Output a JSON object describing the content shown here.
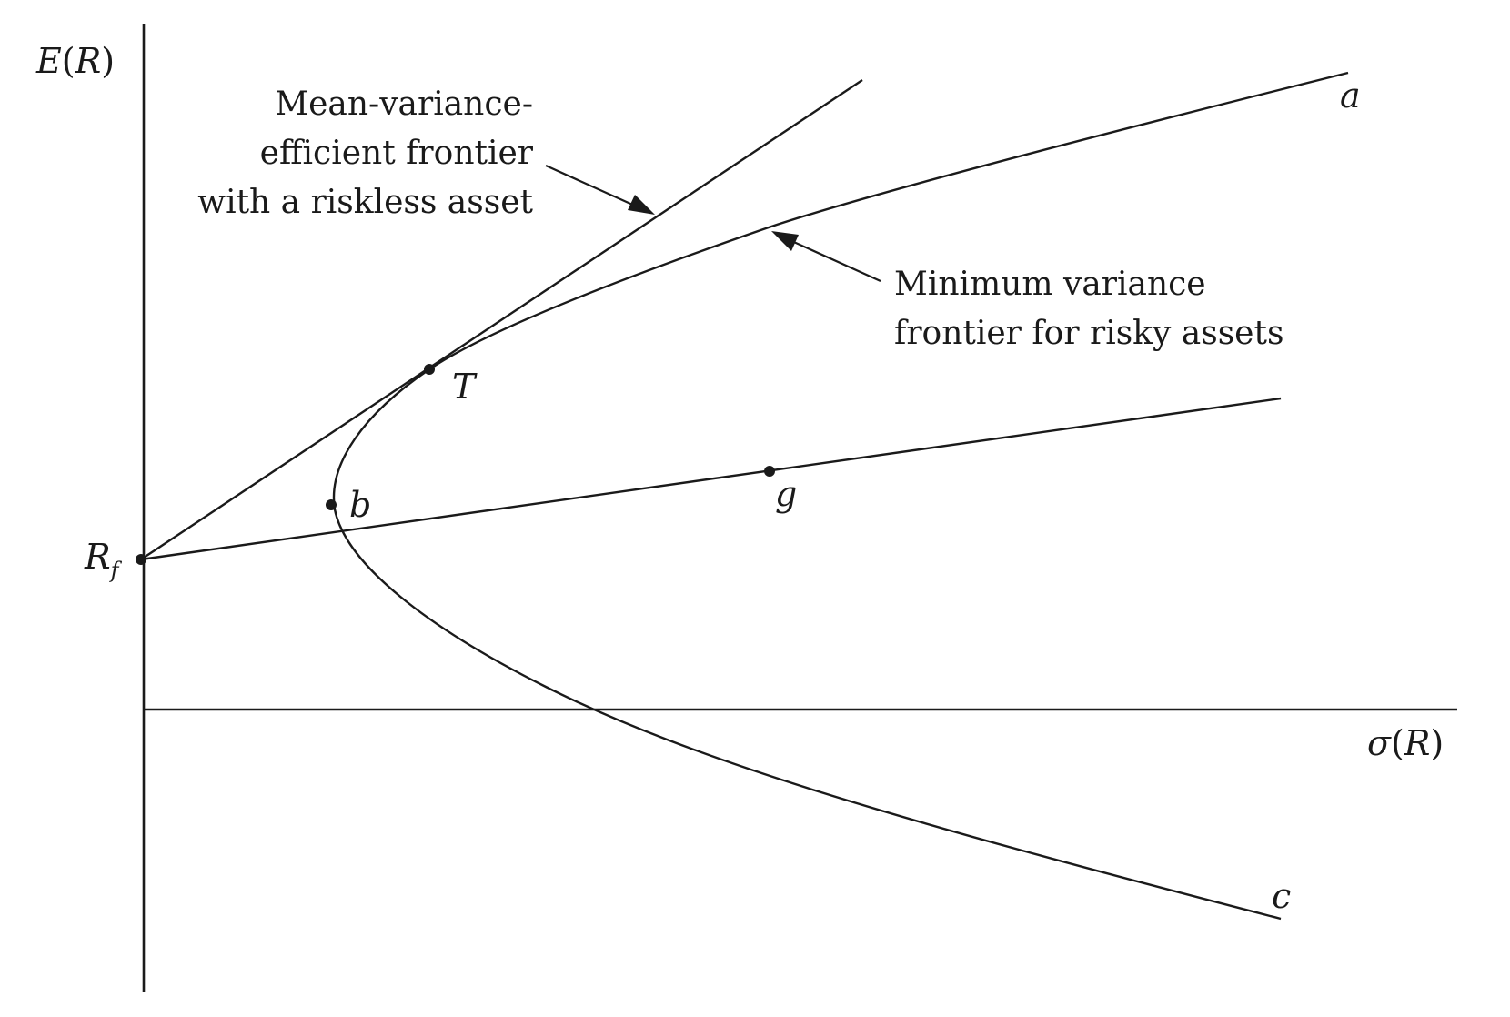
{
  "axes": {
    "y_label": "E(R)",
    "x_label": "σ(R)"
  },
  "points": {
    "rf": "R",
    "rf_sub": "f",
    "tangency": "T",
    "min_var": "b",
    "g": "g"
  },
  "frontier_ends": {
    "upper": "a",
    "lower": "c"
  },
  "callouts": {
    "efficient_with_riskless": [
      "Mean-variance-",
      "efficient frontier",
      "with a riskless asset"
    ],
    "min_variance": [
      "Minimum variance",
      "frontier for risky assets"
    ]
  }
}
